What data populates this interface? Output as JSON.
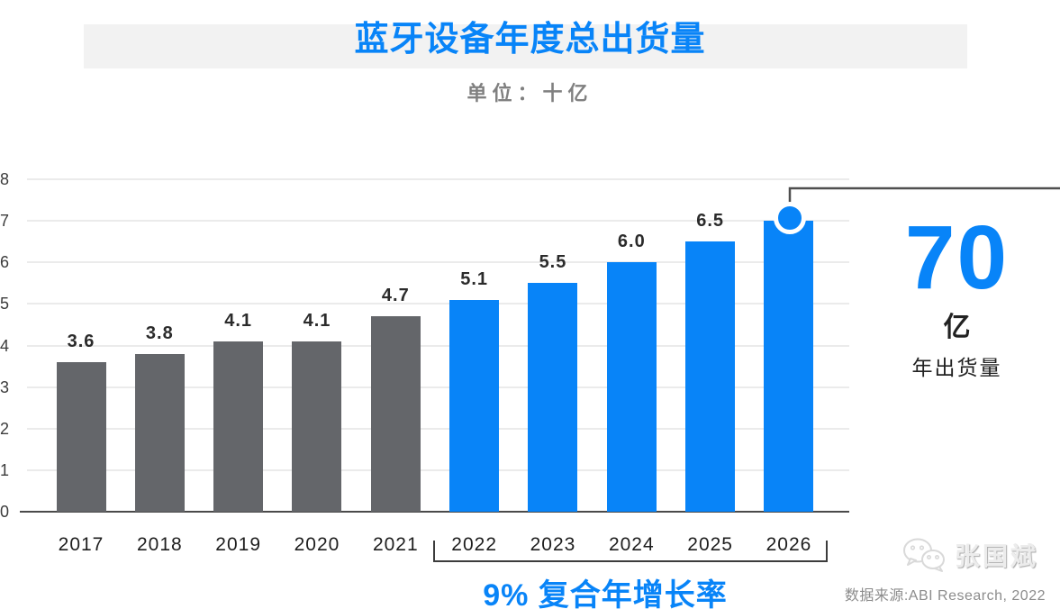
{
  "header": {
    "title": "蓝牙设备年度总出货量",
    "subtitle": "单位：十亿"
  },
  "chart_data": {
    "type": "bar",
    "title": "蓝牙设备年度总出货量",
    "unit_label": "单位：十亿",
    "categories": [
      "2017",
      "2018",
      "2019",
      "2020",
      "2021",
      "2022",
      "2023",
      "2024",
      "2025",
      "2026"
    ],
    "values": [
      3.6,
      3.8,
      4.1,
      4.1,
      4.7,
      5.1,
      5.5,
      6.0,
      6.5,
      7.0
    ],
    "bar_labels": [
      "3.6",
      "3.8",
      "4.1",
      "4.1",
      "4.7",
      "5.1",
      "5.5",
      "6.0",
      "6.5",
      ""
    ],
    "series": [
      {
        "name": "historic-2017-2021",
        "color": "#64666a",
        "years": [
          "2017",
          "2018",
          "2019",
          "2020",
          "2021"
        ],
        "values": [
          3.6,
          3.8,
          4.1,
          4.1,
          4.7
        ]
      },
      {
        "name": "forecast-2022-2026",
        "color": "#0884f8",
        "years": [
          "2022",
          "2023",
          "2024",
          "2025",
          "2026"
        ],
        "values": [
          5.1,
          5.5,
          6.0,
          6.5,
          7.0
        ]
      }
    ],
    "split_index": 5,
    "ylim": [
      0,
      8
    ],
    "yticks": [
      0,
      1,
      2,
      3,
      4,
      5,
      6,
      7,
      8
    ],
    "grid": true,
    "legend": "none",
    "highlight": {
      "year": "2026",
      "value": 7.0,
      "marker": "blue-dot-with-white-ring"
    }
  },
  "callout": {
    "value": "70",
    "unit": "亿",
    "label": "年出货量"
  },
  "cagr": {
    "label": "9% 复合年增长率",
    "from_year": "2022",
    "to_year": "2026"
  },
  "footer": {
    "watermark_name": "张国斌",
    "watermark_icon": "wechat-icon",
    "source": "数据来源:ABI Research, 2022"
  },
  "colors": {
    "accent_blue": "#0884f8",
    "historic_gray": "#64666a",
    "band_gray": "#f2f2f2",
    "gridline": "#ebebeb",
    "axis": "#4a4a4a"
  }
}
